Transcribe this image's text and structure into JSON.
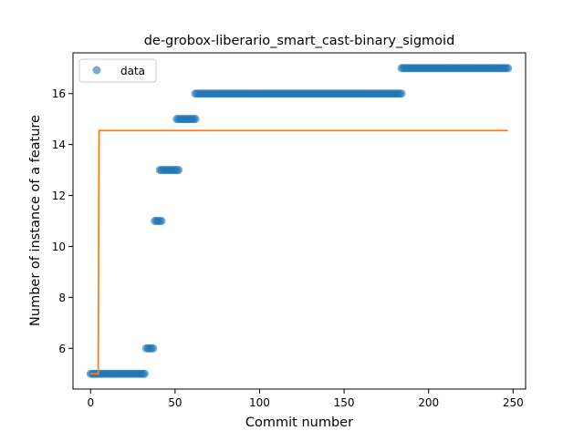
{
  "chart_data": {
    "type": "scatter",
    "title": "de-grobox-liberario_smart_cast-binary_sigmoid",
    "xlabel": "Commit number",
    "ylabel": "Number of instance of a feature",
    "xlim": [
      -10.4,
      257.4
    ],
    "ylim": [
      4.4,
      17.6
    ],
    "xticks": [
      0,
      50,
      100,
      150,
      200,
      250
    ],
    "yticks": [
      6,
      8,
      10,
      12,
      14,
      16
    ],
    "grid": false,
    "legend": {
      "placement": "top-left",
      "entries": [
        "data"
      ]
    },
    "colors": {
      "data": "#1f77b4",
      "fit": "#ff7f0e"
    },
    "series": [
      {
        "name": "data",
        "kind": "scatter",
        "segments": [
          {
            "x_start": 0,
            "x_end": 32,
            "y": 5
          },
          {
            "x_start": 33,
            "x_end": 37,
            "y": 6
          },
          {
            "x_start": 38,
            "x_end": 42,
            "y": 11
          },
          {
            "x_start": 41,
            "x_end": 52,
            "y": 13
          },
          {
            "x_start": 51,
            "x_end": 62,
            "y": 15
          },
          {
            "x_start": 62,
            "x_end": 184,
            "y": 16
          },
          {
            "x_start": 184,
            "x_end": 247,
            "y": 17
          }
        ]
      },
      {
        "kind": "line",
        "x": [
          0,
          4.5,
          5,
          247
        ],
        "y": [
          5,
          5,
          14.55,
          14.55
        ]
      }
    ]
  }
}
